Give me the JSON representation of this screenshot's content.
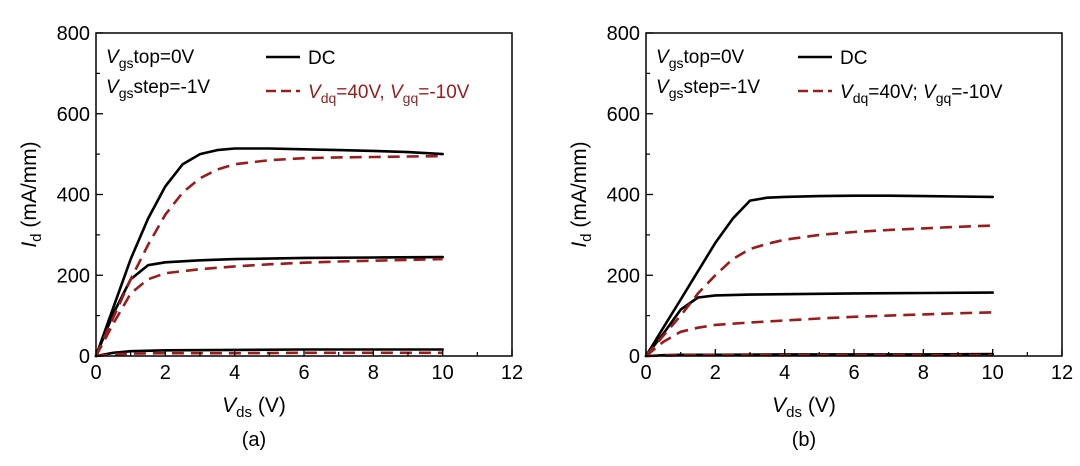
{
  "chart_data": [
    {
      "type": "line",
      "caption": "(a)",
      "xlabel": {
        "main": "V",
        "sub": "ds",
        "unit": " (V)"
      },
      "ylabel": {
        "main": "I",
        "sub": "d",
        "unit": " (mA/mm)"
      },
      "xlim": [
        0,
        12
      ],
      "ylim": [
        0,
        800
      ],
      "xticks": [
        0,
        2,
        4,
        6,
        8,
        10,
        12
      ],
      "yticks": [
        0,
        200,
        400,
        600,
        800
      ],
      "grid": false,
      "annotations": [
        {
          "parts": [
            {
              "t": "V"
            },
            {
              "t": "gs",
              "sub": true
            },
            {
              "t": "top=0V"
            }
          ]
        },
        {
          "parts": [
            {
              "t": "V"
            },
            {
              "t": "gs",
              "sub": true
            },
            {
              "t": "step=-1V"
            }
          ]
        }
      ],
      "legend": {
        "position": "top",
        "entries": [
          {
            "series": "dc",
            "parts": [
              {
                "t": "DC"
              }
            ],
            "color": "#000000"
          },
          {
            "series": "pulsed",
            "parts": [
              {
                "t": "V",
                "italic": true
              },
              {
                "t": "dq",
                "sub": true
              },
              {
                "t": "=40V, "
              },
              {
                "t": "V",
                "italic": true
              },
              {
                "t": "gq",
                "sub": true
              },
              {
                "t": "=-10V"
              }
            ],
            "color": "#9b1c1c"
          }
        ]
      },
      "series": [
        {
          "group": "dc",
          "color": "#000000",
          "style": "solid",
          "points": [
            [
              0,
              0
            ],
            [
              0.5,
              120
            ],
            [
              1,
              240
            ],
            [
              1.5,
              340
            ],
            [
              2,
              420
            ],
            [
              2.5,
              475
            ],
            [
              3,
              500
            ],
            [
              3.5,
              510
            ],
            [
              4,
              514
            ],
            [
              5,
              514
            ],
            [
              6,
              512
            ],
            [
              7,
              510
            ],
            [
              8,
              508
            ],
            [
              9,
              505
            ],
            [
              10,
              500
            ]
          ]
        },
        {
          "group": "dc",
          "color": "#000000",
          "style": "solid",
          "points": [
            [
              0,
              0
            ],
            [
              0.5,
              105
            ],
            [
              1,
              190
            ],
            [
              1.5,
              225
            ],
            [
              2,
              232
            ],
            [
              3,
              237
            ],
            [
              4,
              240
            ],
            [
              6,
              243
            ],
            [
              8,
              244
            ],
            [
              10,
              245
            ]
          ]
        },
        {
          "group": "dc",
          "color": "#000000",
          "style": "solid",
          "points": [
            [
              0,
              0
            ],
            [
              0.5,
              8
            ],
            [
              1,
              12
            ],
            [
              2,
              14
            ],
            [
              4,
              15
            ],
            [
              6,
              16
            ],
            [
              8,
              16
            ],
            [
              10,
              16
            ]
          ]
        },
        {
          "group": "pulsed",
          "color": "#9b1c1c",
          "style": "dashed",
          "points": [
            [
              0,
              0
            ],
            [
              0.5,
              95
            ],
            [
              1,
              190
            ],
            [
              1.5,
              275
            ],
            [
              2,
              350
            ],
            [
              2.5,
              405
            ],
            [
              3,
              440
            ],
            [
              3.5,
              462
            ],
            [
              4,
              475
            ],
            [
              5,
              485
            ],
            [
              6,
              490
            ],
            [
              7,
              492
            ],
            [
              8,
              493
            ],
            [
              9,
              494
            ],
            [
              10,
              495
            ]
          ]
        },
        {
          "group": "pulsed",
          "color": "#9b1c1c",
          "style": "dashed",
          "points": [
            [
              0,
              0
            ],
            [
              0.5,
              80
            ],
            [
              1,
              155
            ],
            [
              1.5,
              190
            ],
            [
              2,
              205
            ],
            [
              3,
              215
            ],
            [
              4,
              222
            ],
            [
              5,
              227
            ],
            [
              6,
              231
            ],
            [
              7,
              234
            ],
            [
              8,
              236
            ],
            [
              9,
              238
            ],
            [
              10,
              240
            ]
          ]
        },
        {
          "group": "pulsed",
          "color": "#9b1c1c",
          "style": "dashed",
          "points": [
            [
              0,
              0
            ],
            [
              0.5,
              4
            ],
            [
              1,
              6
            ],
            [
              2,
              7
            ],
            [
              4,
              7
            ],
            [
              6,
              8
            ],
            [
              8,
              8
            ],
            [
              10,
              8
            ]
          ]
        }
      ]
    },
    {
      "type": "line",
      "caption": "(b)",
      "xlabel": {
        "main": "V",
        "sub": "ds",
        "unit": " (V)"
      },
      "ylabel": {
        "main": "I",
        "sub": "d",
        "unit": " (mA/mm)"
      },
      "xlim": [
        0,
        12
      ],
      "ylim": [
        0,
        800
      ],
      "xticks": [
        0,
        2,
        4,
        6,
        8,
        10,
        12
      ],
      "yticks": [
        0,
        200,
        400,
        600,
        800
      ],
      "grid": false,
      "annotations": [
        {
          "parts": [
            {
              "t": "V"
            },
            {
              "t": "gs",
              "sub": true
            },
            {
              "t": "top=0V"
            }
          ]
        },
        {
          "parts": [
            {
              "t": "V"
            },
            {
              "t": "gs",
              "sub": true
            },
            {
              "t": "step=-1V"
            }
          ]
        }
      ],
      "legend": {
        "position": "top",
        "entries": [
          {
            "series": "dc",
            "parts": [
              {
                "t": "DC"
              }
            ],
            "color": "#000000"
          },
          {
            "series": "pulsed",
            "parts": [
              {
                "t": "V",
                "italic": true
              },
              {
                "t": "dq",
                "sub": true
              },
              {
                "t": "=40V; "
              },
              {
                "t": "V",
                "italic": true
              },
              {
                "t": "gq",
                "sub": true
              },
              {
                "t": "=-10V"
              }
            ],
            "color": "#000000"
          }
        ]
      },
      "series": [
        {
          "group": "dc",
          "color": "#000000",
          "style": "solid",
          "points": [
            [
              0,
              0
            ],
            [
              0.5,
              70
            ],
            [
              1,
              140
            ],
            [
              1.5,
              210
            ],
            [
              2,
              280
            ],
            [
              2.5,
              340
            ],
            [
              3,
              385
            ],
            [
              3.5,
              392
            ],
            [
              4,
              394
            ],
            [
              5,
              396
            ],
            [
              6,
              397
            ],
            [
              7,
              397
            ],
            [
              8,
              396
            ],
            [
              9,
              395
            ],
            [
              10,
              394
            ]
          ]
        },
        {
          "group": "dc",
          "color": "#000000",
          "style": "solid",
          "points": [
            [
              0,
              0
            ],
            [
              0.5,
              55
            ],
            [
              1,
              115
            ],
            [
              1.5,
              145
            ],
            [
              2,
              150
            ],
            [
              3,
              152
            ],
            [
              4,
              153
            ],
            [
              6,
              155
            ],
            [
              8,
              156
            ],
            [
              10,
              157
            ]
          ]
        },
        {
          "group": "dc",
          "color": "#000000",
          "style": "solid",
          "points": [
            [
              0,
              0
            ],
            [
              0.5,
              2
            ],
            [
              1,
              3
            ],
            [
              2,
              3
            ],
            [
              4,
              4
            ],
            [
              6,
              4
            ],
            [
              8,
              4
            ],
            [
              10,
              5
            ]
          ]
        },
        {
          "group": "pulsed",
          "color": "#9b1c1c",
          "style": "dashed",
          "points": [
            [
              0,
              0
            ],
            [
              0.5,
              50
            ],
            [
              1,
              100
            ],
            [
              1.5,
              155
            ],
            [
              2,
              200
            ],
            [
              2.5,
              240
            ],
            [
              3,
              265
            ],
            [
              3.5,
              278
            ],
            [
              4,
              288
            ],
            [
              5,
              300
            ],
            [
              6,
              307
            ],
            [
              7,
              312
            ],
            [
              8,
              316
            ],
            [
              9,
              320
            ],
            [
              10,
              323
            ]
          ]
        },
        {
          "group": "pulsed",
          "color": "#9b1c1c",
          "style": "dashed",
          "points": [
            [
              0,
              0
            ],
            [
              0.5,
              35
            ],
            [
              1,
              60
            ],
            [
              1.5,
              70
            ],
            [
              2,
              77
            ],
            [
              3,
              83
            ],
            [
              4,
              88
            ],
            [
              5,
              93
            ],
            [
              6,
              97
            ],
            [
              7,
              100
            ],
            [
              8,
              103
            ],
            [
              9,
              106
            ],
            [
              10,
              108
            ]
          ]
        },
        {
          "group": "pulsed",
          "color": "#9b1c1c",
          "style": "dashed",
          "points": [
            [
              0,
              0
            ],
            [
              0.5,
              1
            ],
            [
              1,
              2
            ],
            [
              2,
              2
            ],
            [
              4,
              2
            ],
            [
              6,
              2
            ],
            [
              8,
              2
            ],
            [
              10,
              2
            ]
          ]
        }
      ]
    }
  ]
}
